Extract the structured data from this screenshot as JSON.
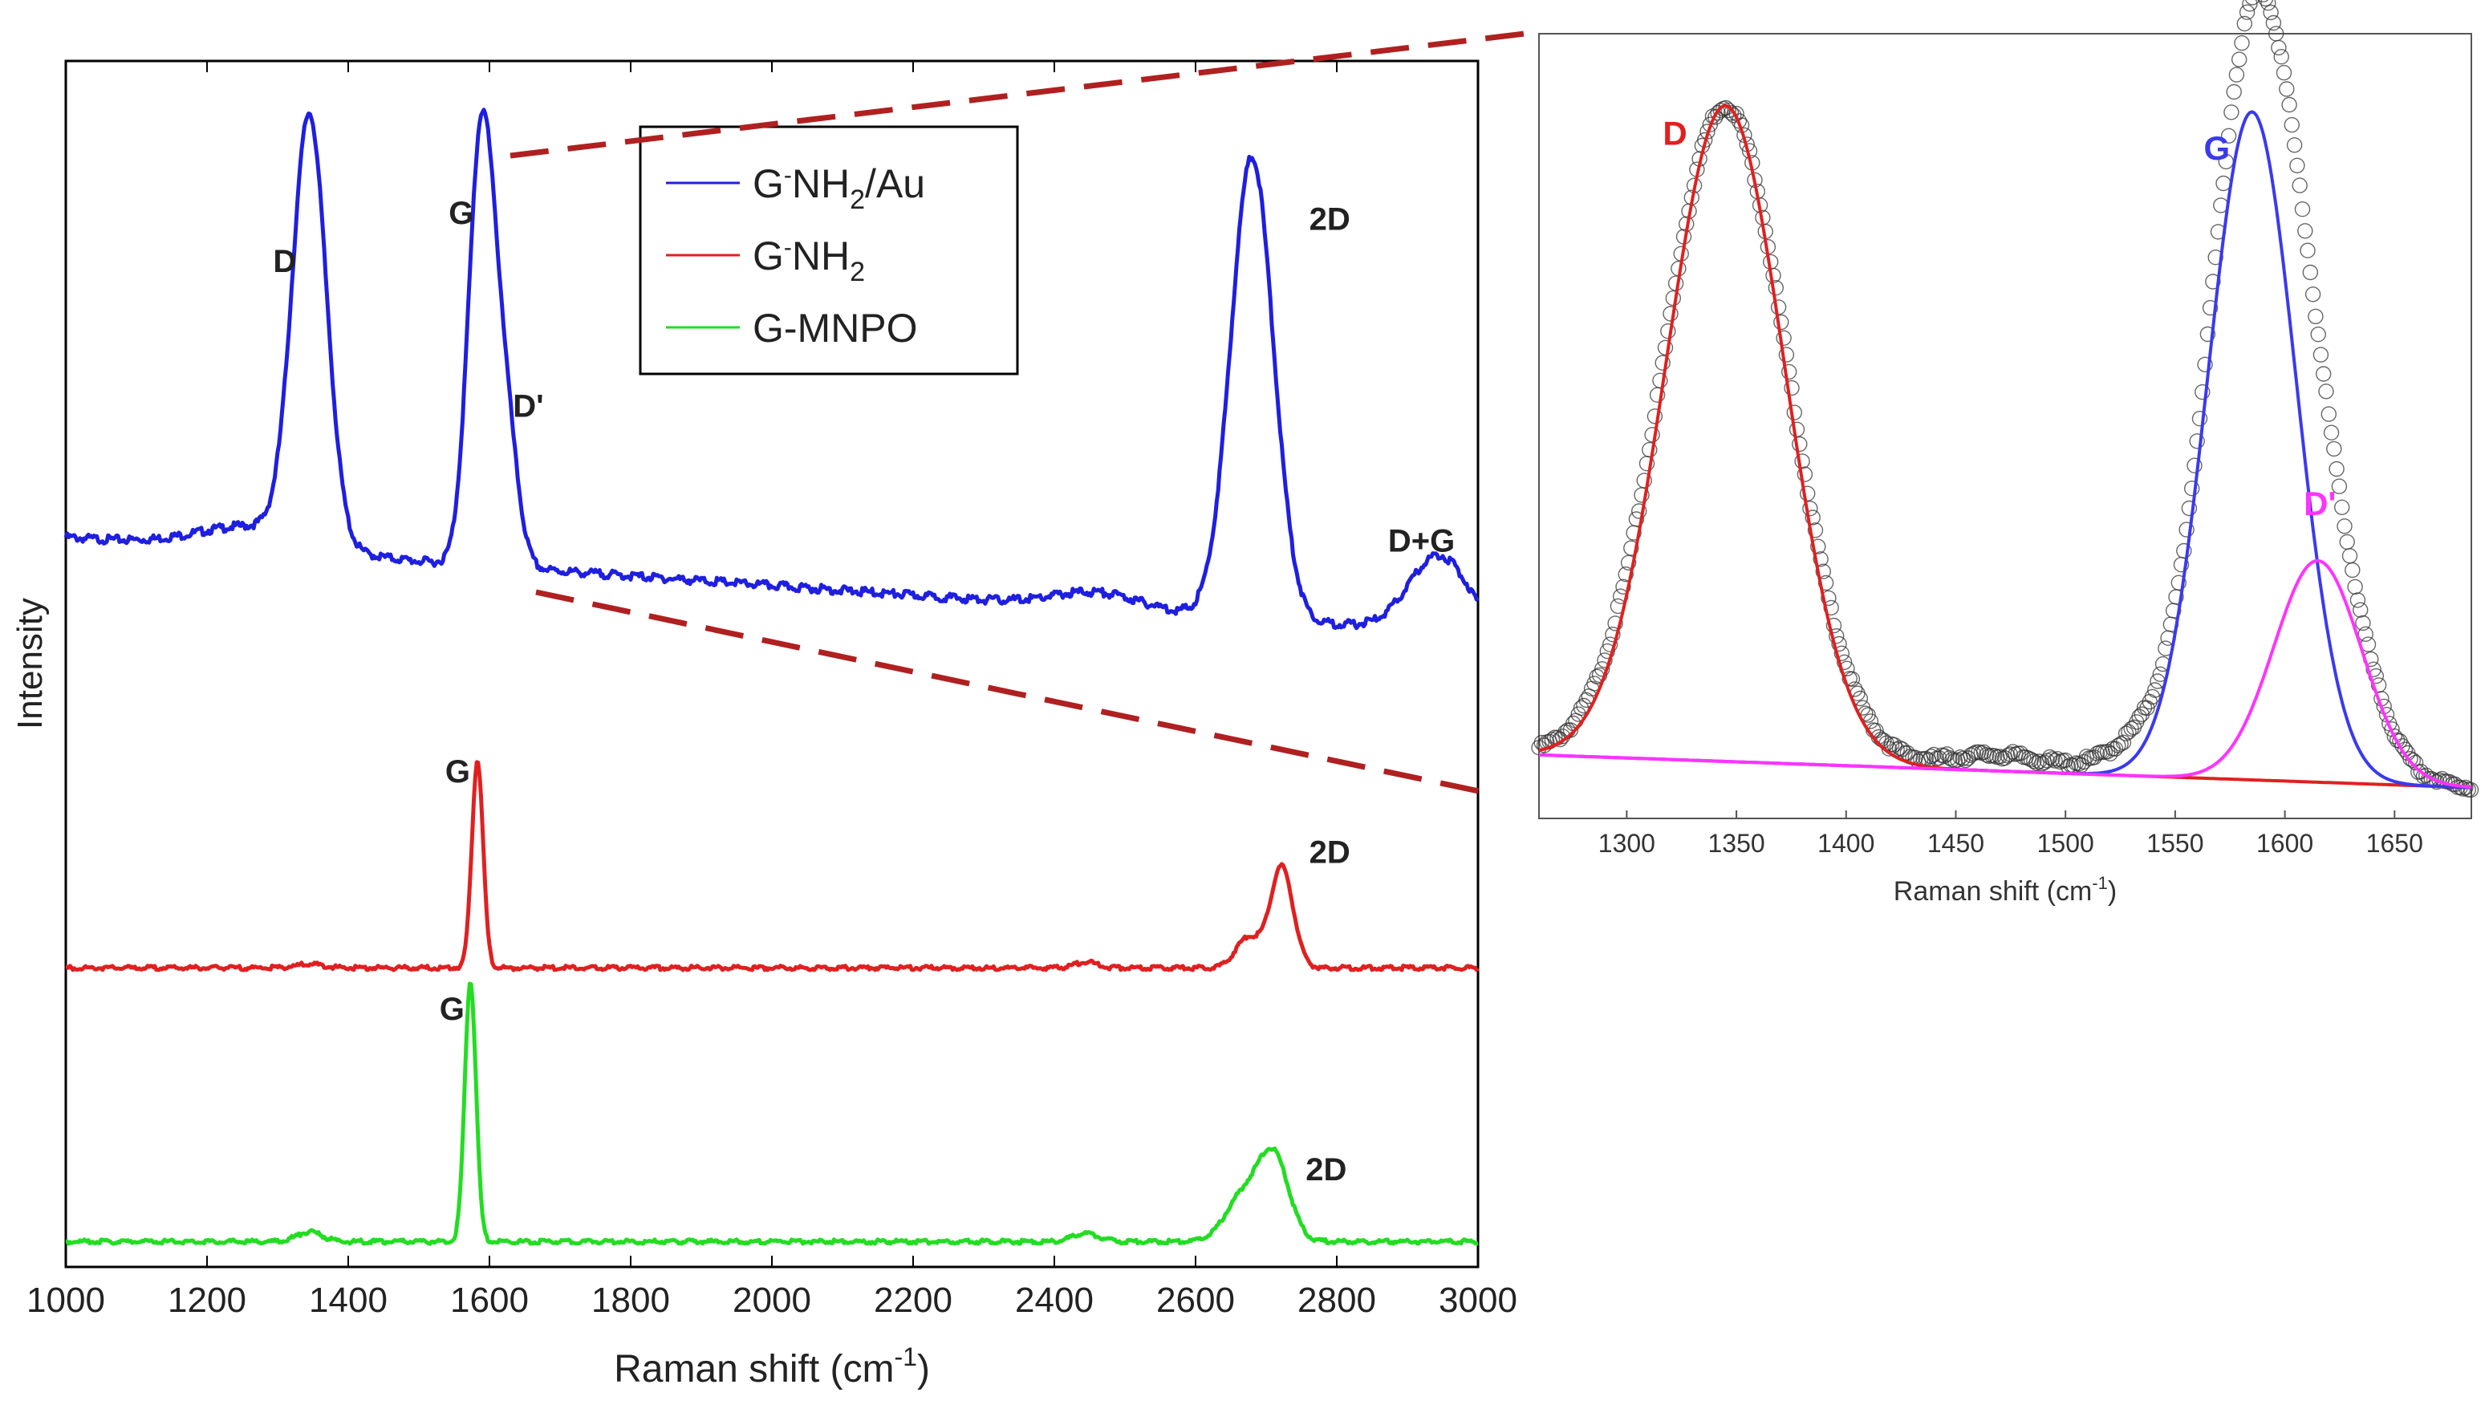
{
  "chart_data": [
    {
      "type": "line",
      "panel": "main",
      "xlabel": "Raman shift (cm",
      "xlabel_sup": "-1",
      "xlabel_end": ")",
      "ylabel": "Intensity",
      "xlim": [
        1000,
        3000
      ],
      "ylim": [
        0,
        100
      ],
      "x_ticks": [
        1000,
        1200,
        1400,
        1600,
        1800,
        2000,
        2200,
        2400,
        2600,
        2800,
        3000
      ],
      "legend": {
        "placement": "top-center",
        "entries": [
          {
            "name": "G-NH2/Au",
            "parts": [
              "G",
              "-",
              "NH",
              "2",
              "/Au"
            ],
            "color": "#1f1fe0"
          },
          {
            "name": "G-NH2",
            "parts": [
              "G",
              "-",
              "NH",
              "2",
              ""
            ],
            "color": "#e02020"
          },
          {
            "name": "G-MNPO",
            "parts": [
              "G-MNPO",
              "",
              "",
              "",
              ""
            ],
            "color": "#22dd22"
          }
        ]
      },
      "series": [
        {
          "name": "G-NH2/Au",
          "color": "#1f1fe0",
          "baseline": 60.5,
          "peaks": [
            {
              "center": 1345,
              "height": 35.3,
              "width": 24
            },
            {
              "center": 1588,
              "height": 34.8,
              "width": 18
            },
            {
              "center": 1620,
              "height": 13,
              "width": 18
            },
            {
              "center": 2680,
              "height": 38.3,
              "width": 30
            },
            {
              "center": 2945,
              "height": 6.3,
              "width": 42
            },
            {
              "center": 2460,
              "height": 1.3,
              "width": 60
            },
            {
              "center": 1270,
              "height": 2,
              "width": 80
            }
          ],
          "baseline_slope": -0.0008
        },
        {
          "name": "G-NH2",
          "color": "#e02020",
          "baseline": 24.8,
          "peaks": [
            {
              "center": 1583,
              "height": 17.2,
              "width": 8
            },
            {
              "center": 2722,
              "height": 8.4,
              "width": 16
            },
            {
              "center": 2675,
              "height": 2.5,
              "width": 18
            },
            {
              "center": 2445,
              "height": 0.5,
              "width": 14
            },
            {
              "center": 1345,
              "height": 0.3,
              "width": 20
            }
          ],
          "baseline_slope": 0
        },
        {
          "name": "G-MNPO",
          "color": "#22dd22",
          "baseline": 2.1,
          "peaks": [
            {
              "center": 1573,
              "height": 21.6,
              "width": 8
            },
            {
              "center": 2710,
              "height": 7.1,
              "width": 22
            },
            {
              "center": 2665,
              "height": 3.5,
              "width": 24
            },
            {
              "center": 1345,
              "height": 0.8,
              "width": 18
            },
            {
              "center": 2445,
              "height": 0.7,
              "width": 18
            }
          ],
          "baseline_slope": 0
        }
      ],
      "annotations": [
        {
          "text": "D",
          "x": 1310,
          "y": 82.5
        },
        {
          "text": "G",
          "x": 1560,
          "y": 86.5
        },
        {
          "text": "D'",
          "x": 1655,
          "y": 70.5
        },
        {
          "text": "2D",
          "x": 2790,
          "y": 86
        },
        {
          "text": "D+G",
          "x": 2920,
          "y": 59.3
        },
        {
          "text": "G",
          "x": 1555,
          "y": 40.2
        },
        {
          "text": "2D",
          "x": 2790,
          "y": 33.5
        },
        {
          "text": "G",
          "x": 1547,
          "y": 20.5
        },
        {
          "text": "2D",
          "x": 2785,
          "y": 7.2
        }
      ]
    },
    {
      "type": "scatter",
      "panel": "inset",
      "xlabel": "Raman shift (cm",
      "xlabel_sup": "-1",
      "xlabel_end": ")",
      "xlim": [
        1260,
        1685
      ],
      "ylim": [
        0,
        100
      ],
      "x_ticks": [
        1300,
        1350,
        1400,
        1450,
        1500,
        1550,
        1600,
        1650
      ],
      "baseline_line": {
        "x": [
          1260,
          1685
        ],
        "y": [
          3.0,
          -1.5
        ],
        "color": "#000000"
      },
      "fits": [
        {
          "name": "D",
          "color": "#e02020",
          "center": 1345,
          "height": 90.3,
          "width": 27
        },
        {
          "name": "G",
          "color": "#3a3aee",
          "center": 1585,
          "height": 92.0,
          "width": 20
        },
        {
          "name": "D'",
          "color": "#ff33ff",
          "center": 1615,
          "height": 30.5,
          "width": 20
        }
      ],
      "measured": {
        "name": "data",
        "marker": "circle",
        "color": "#333333",
        "x_step": 1.2
      },
      "labels": [
        {
          "text": "D",
          "x": 1322,
          "y": 87,
          "color": "#e02020"
        },
        {
          "text": "G",
          "x": 1569,
          "y": 85,
          "color": "#3a3aee"
        },
        {
          "text": "D'",
          "x": 1616,
          "y": 36,
          "color": "#ff33ff"
        }
      ]
    }
  ],
  "zoom_connector": {
    "color": "#b02020",
    "style": "dashed"
  }
}
